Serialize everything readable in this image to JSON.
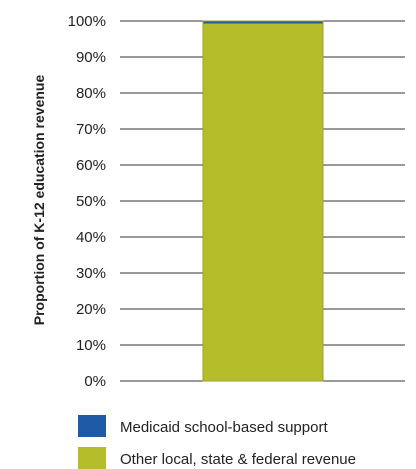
{
  "chart_data": {
    "type": "bar",
    "stacked": true,
    "categories": [
      ""
    ],
    "series": [
      {
        "name": "Other local, state & federal revenue",
        "values": [
          99.3
        ],
        "color": "#b5bd2b"
      },
      {
        "name": "Medicaid school-based support",
        "values": [
          0.7
        ],
        "color": "#1f5aa6"
      }
    ],
    "title": "",
    "xlabel": "",
    "ylabel": "Proportion of K-12 education revenue",
    "ylim": [
      0,
      100
    ],
    "yticks": [
      "0%",
      "10%",
      "20%",
      "30%",
      "40%",
      "50%",
      "60%",
      "70%",
      "80%",
      "90%",
      "100%"
    ],
    "grid": true,
    "legend": {
      "placement": "bottom",
      "entries": [
        "Medicaid school-based support",
        "Other local, state & federal revenue"
      ]
    }
  }
}
